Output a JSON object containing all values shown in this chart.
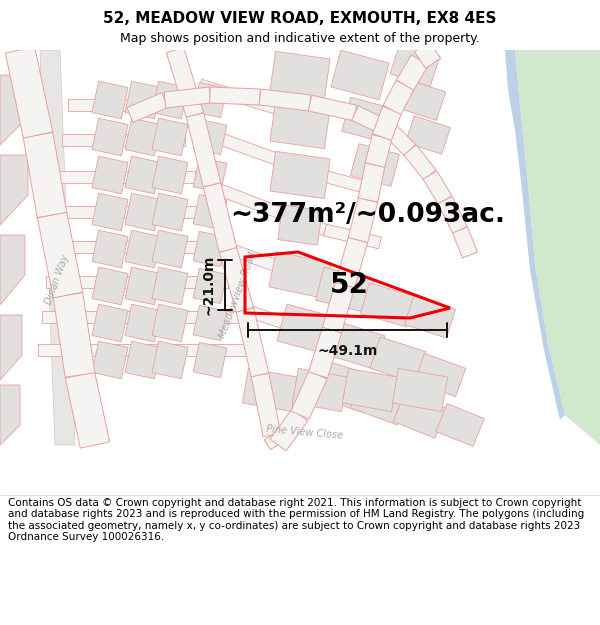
{
  "title": "52, MEADOW VIEW ROAD, EXMOUTH, EX8 4ES",
  "subtitle": "Map shows position and indicative extent of the property.",
  "footer_line1": "Contains OS data © Crown copyright and database right 2021. This information is subject to Crown copyright and database rights 2023 and is reproduced with the permission of",
  "footer_line2": "HM Land Registry. The polygons (including the associated geometry, namely x, y co-ordinates) are subject to Crown copyright and database rights 2023 Ordnance Survey 100026316.",
  "area_label": "~377m²/~0.093ac.",
  "property_number": "52",
  "dim_width_label": "~49.1m",
  "dim_height_label": "~21.0m",
  "map_bg": "#f5f4f2",
  "block_fill": "#e2e0de",
  "block_edge": "#e8a0a0",
  "road_edge": "#e8a0a0",
  "road_fill": "#f5f4f2",
  "green_fill": "#d0e8cc",
  "blue_fill": "#bcd0e8",
  "property_color": "#ee0000",
  "dim_color": "#111111",
  "label_color": "#aaaaaa",
  "title_fontsize": 11,
  "subtitle_fontsize": 9,
  "footer_fontsize": 7.5,
  "area_fontsize": 19,
  "num_fontsize": 20,
  "dim_fontsize": 10,
  "road_label_fontsize": 7
}
